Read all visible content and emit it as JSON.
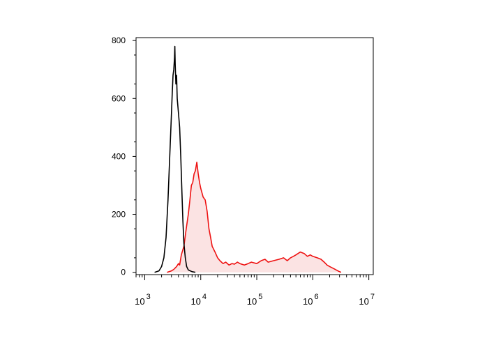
{
  "chart_data": {
    "type": "area",
    "title": "",
    "xlabel": "",
    "ylabel": "",
    "x_scale": "log",
    "xlim": [
      700,
      12000000
    ],
    "ylim": [
      -8,
      810
    ],
    "y_ticks": [
      {
        "value": 0,
        "label": "0"
      },
      {
        "value": 200,
        "label": "200"
      },
      {
        "value": 400,
        "label": "400"
      },
      {
        "value": 600,
        "label": "600"
      },
      {
        "value": 800,
        "label": "800"
      }
    ],
    "x_ticks": [
      {
        "value": 1000,
        "base": "10",
        "exp": "3"
      },
      {
        "value": 10000,
        "base": "10",
        "exp": "4"
      },
      {
        "value": 100000,
        "base": "10",
        "exp": "5"
      },
      {
        "value": 1000000,
        "base": "10",
        "exp": "6"
      },
      {
        "value": 10000000,
        "base": "10",
        "exp": "7"
      }
    ],
    "grid": false,
    "legend": "none",
    "series": [
      {
        "color": "#000000",
        "fill": "none",
        "points": [
          [
            1500,
            0
          ],
          [
            1800,
            5
          ],
          [
            2000,
            20
          ],
          [
            2200,
            50
          ],
          [
            2400,
            120
          ],
          [
            2600,
            250
          ],
          [
            2800,
            400
          ],
          [
            3000,
            550
          ],
          [
            3100,
            620
          ],
          [
            3200,
            680
          ],
          [
            3300,
            700
          ],
          [
            3400,
            740
          ],
          [
            3450,
            780
          ],
          [
            3500,
            720
          ],
          [
            3600,
            650
          ],
          [
            3700,
            680
          ],
          [
            3800,
            600
          ],
          [
            4000,
            550
          ],
          [
            4200,
            500
          ],
          [
            4400,
            400
          ],
          [
            4600,
            280
          ],
          [
            4800,
            180
          ],
          [
            5000,
            100
          ],
          [
            5300,
            50
          ],
          [
            5600,
            20
          ],
          [
            6000,
            8
          ],
          [
            7000,
            2
          ],
          [
            8000,
            0
          ]
        ]
      },
      {
        "color": "#ee1111",
        "fill": "#fbe3e3",
        "points": [
          [
            2500,
            0
          ],
          [
            3000,
            5
          ],
          [
            3300,
            10
          ],
          [
            3700,
            20
          ],
          [
            4000,
            30
          ],
          [
            4200,
            25
          ],
          [
            4500,
            60
          ],
          [
            5000,
            90
          ],
          [
            5500,
            150
          ],
          [
            6000,
            200
          ],
          [
            6400,
            250
          ],
          [
            6800,
            300
          ],
          [
            7200,
            310
          ],
          [
            7600,
            340
          ],
          [
            8000,
            350
          ],
          [
            8500,
            380
          ],
          [
            9000,
            340
          ],
          [
            9500,
            310
          ],
          [
            10000,
            290
          ],
          [
            11000,
            260
          ],
          [
            12000,
            250
          ],
          [
            13000,
            210
          ],
          [
            14000,
            150
          ],
          [
            15000,
            120
          ],
          [
            16000,
            90
          ],
          [
            18000,
            70
          ],
          [
            20000,
            50
          ],
          [
            22000,
            40
          ],
          [
            25000,
            30
          ],
          [
            28000,
            35
          ],
          [
            32000,
            25
          ],
          [
            36000,
            30
          ],
          [
            40000,
            28
          ],
          [
            45000,
            35
          ],
          [
            50000,
            30
          ],
          [
            60000,
            25
          ],
          [
            70000,
            30
          ],
          [
            80000,
            35
          ],
          [
            100000,
            30
          ],
          [
            120000,
            40
          ],
          [
            140000,
            45
          ],
          [
            160000,
            35
          ],
          [
            200000,
            40
          ],
          [
            250000,
            45
          ],
          [
            300000,
            50
          ],
          [
            350000,
            40
          ],
          [
            400000,
            50
          ],
          [
            450000,
            55
          ],
          [
            500000,
            60
          ],
          [
            600000,
            70
          ],
          [
            700000,
            65
          ],
          [
            800000,
            55
          ],
          [
            900000,
            60
          ],
          [
            1000000,
            55
          ],
          [
            1200000,
            50
          ],
          [
            1400000,
            45
          ],
          [
            1600000,
            35
          ],
          [
            1800000,
            25
          ],
          [
            2000000,
            20
          ],
          [
            2400000,
            12
          ],
          [
            2800000,
            5
          ],
          [
            3000000,
            2
          ],
          [
            3200000,
            0
          ]
        ]
      }
    ]
  }
}
